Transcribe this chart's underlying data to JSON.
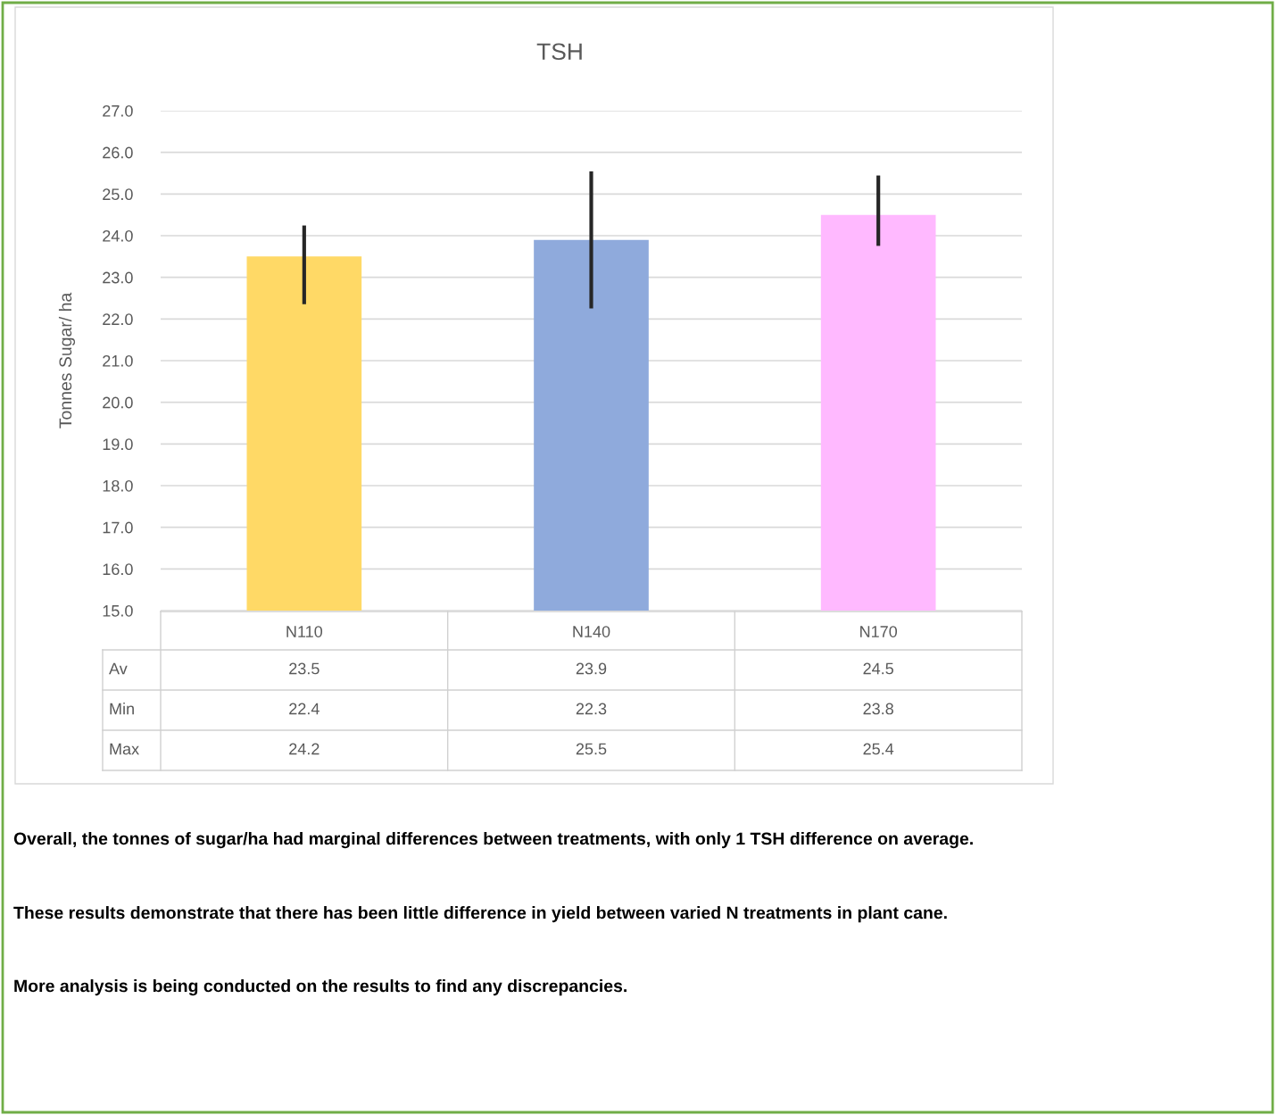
{
  "chart_data": {
    "type": "bar",
    "title": "TSH",
    "ylabel": "Tonnes Sugar/ ha",
    "categories": [
      "N110",
      "N140",
      "N170"
    ],
    "series": [
      {
        "name": "Av",
        "colors": [
          "#ffd966",
          "#8faadc",
          "#ffb9ff"
        ],
        "values": [
          23.5,
          23.9,
          24.5
        ],
        "errors": [
          [
            22.4,
            24.2
          ],
          [
            22.3,
            25.5
          ],
          [
            23.8,
            25.4
          ]
        ]
      }
    ],
    "ylim": [
      15.0,
      27.0
    ],
    "yticks": [
      {
        "value": 15,
        "label": "15.0"
      },
      {
        "value": 16,
        "label": "16.0"
      },
      {
        "value": 17,
        "label": "17.0"
      },
      {
        "value": 18,
        "label": "18.0"
      },
      {
        "value": 19,
        "label": "19.0"
      },
      {
        "value": 20,
        "label": "20.0"
      },
      {
        "value": 21,
        "label": "21.0"
      },
      {
        "value": 22,
        "label": "22.0"
      },
      {
        "value": 23,
        "label": "23.0"
      },
      {
        "value": 24,
        "label": "24.0"
      },
      {
        "value": 25,
        "label": "25.0"
      },
      {
        "value": 26,
        "label": "26.0"
      },
      {
        "value": 27,
        "label": "27.0"
      }
    ],
    "grid": "y",
    "data_labels": true,
    "annotations": [
      "Min",
      "Max",
      "22.4",
      "22.3",
      "23.8",
      "24.2",
      "25.5",
      "25.4",
      "Overall, the tonnes of sugar/ha had marginal differences between treatments, with only 1 TSH difference on average.",
      "These results demonstrate that there has been little difference in yield between varied N treatments in plant cane.",
      "More analysis is being conducted on the results to find any discrepancies."
    ]
  }
}
